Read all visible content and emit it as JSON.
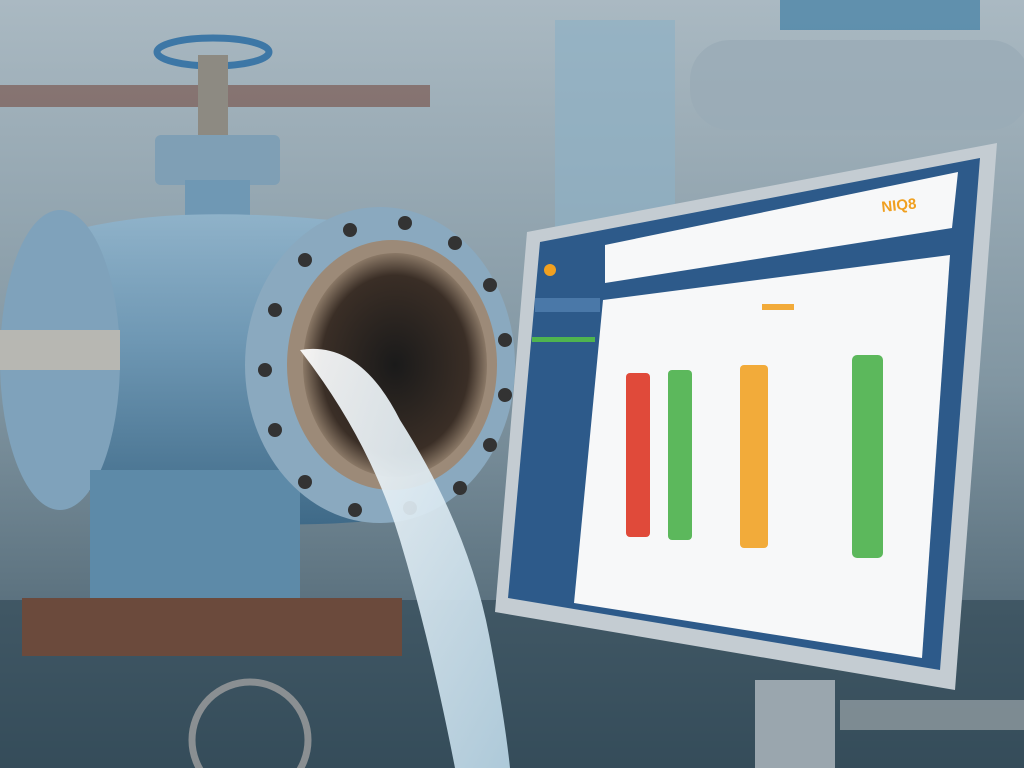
{
  "scene": {
    "description_tag": "",
    "monitor": {
      "brand_text": "NIQ8",
      "colors": {
        "frame": "#b9c2c9",
        "screen_bezel": "#2d5a8a",
        "panel": "#f7f8f9",
        "bar_red": "#e04a3a",
        "bar_green": "#5cb85c",
        "bar_orange": "#f2ab3a",
        "sidebar_progress": "#4fb44f"
      },
      "bar_levels_percent": [
        78,
        80,
        84,
        90
      ]
    },
    "colors": {
      "pipe": "#6f98b4",
      "flange": "#8aa9bf",
      "water": "#e8f2f8",
      "background": "#8ea3ae"
    }
  }
}
